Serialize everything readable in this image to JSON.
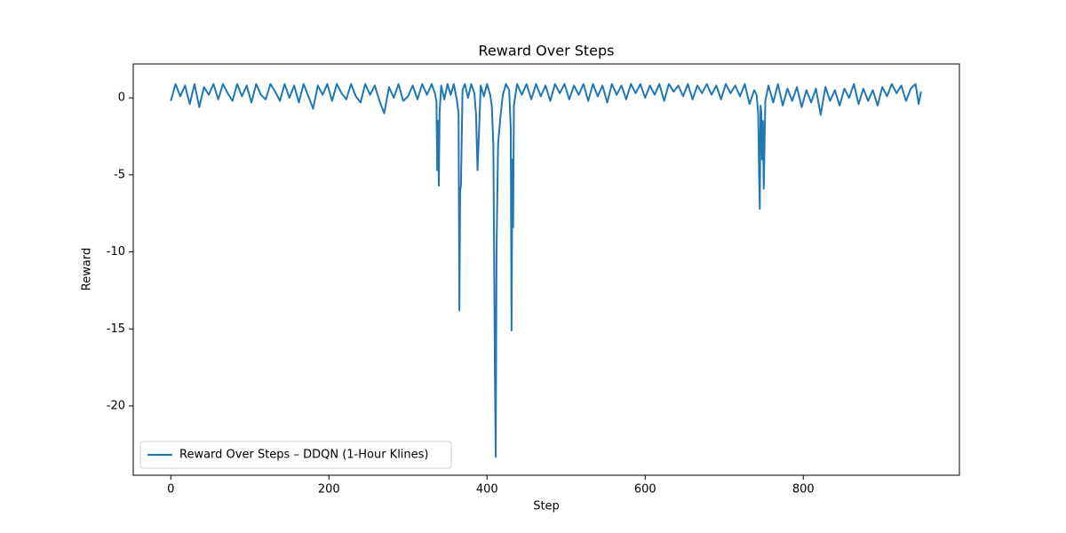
{
  "chart_data": {
    "type": "line",
    "title": "Reward Over Steps",
    "x_label": "Step",
    "y_label": "Reward",
    "legend": "lower left",
    "xlim": [
      -47.5,
      997.5
    ],
    "xticks": [
      0,
      200,
      400,
      600,
      800
    ],
    "ylim": [
      -24.5,
      2.2
    ],
    "yticks": [
      0,
      -5,
      -10,
      -15,
      -20
    ],
    "x": [
      0,
      6,
      12,
      18,
      24,
      30,
      36,
      42,
      48,
      54,
      60,
      66,
      72,
      78,
      84,
      90,
      96,
      102,
      108,
      114,
      120,
      126,
      132,
      138,
      144,
      150,
      156,
      162,
      168,
      174,
      180,
      186,
      192,
      198,
      204,
      210,
      216,
      222,
      228,
      234,
      240,
      246,
      252,
      258,
      264,
      270,
      276,
      282,
      288,
      294,
      300,
      306,
      312,
      318,
      324,
      330,
      334,
      336,
      337,
      338,
      339,
      340,
      342,
      346,
      350,
      354,
      358,
      362,
      364,
      365,
      366,
      367,
      369,
      372,
      376,
      380,
      384,
      386,
      388,
      390,
      392,
      396,
      400,
      404,
      406,
      408,
      410,
      411,
      412,
      414,
      417,
      420,
      424,
      428,
      430,
      431,
      432,
      433,
      434,
      438,
      444,
      450,
      456,
      462,
      468,
      474,
      480,
      486,
      492,
      498,
      504,
      510,
      516,
      522,
      528,
      534,
      540,
      546,
      552,
      558,
      564,
      570,
      576,
      582,
      588,
      594,
      600,
      606,
      612,
      618,
      624,
      630,
      636,
      642,
      648,
      654,
      660,
      666,
      672,
      678,
      684,
      690,
      696,
      702,
      708,
      714,
      720,
      726,
      732,
      738,
      741,
      743,
      744,
      745,
      746,
      747,
      748,
      749,
      750,
      752,
      756,
      762,
      768,
      774,
      780,
      786,
      792,
      798,
      804,
      810,
      816,
      822,
      828,
      834,
      840,
      846,
      852,
      858,
      864,
      870,
      876,
      882,
      888,
      894,
      900,
      906,
      912,
      918,
      924,
      930,
      936,
      942,
      946,
      949
    ],
    "series": [
      {
        "name": "Reward Over Steps – DDQN (1-Hour Klines)",
        "color": "#1f77b4",
        "values": [
          -0.2,
          0.9,
          0.1,
          0.8,
          -0.4,
          0.9,
          -0.6,
          0.7,
          0.2,
          0.9,
          -0.1,
          0.9,
          0.3,
          -0.2,
          0.9,
          0.1,
          0.8,
          -0.3,
          0.9,
          0.2,
          -0.1,
          0.9,
          0.4,
          -0.2,
          0.9,
          0.0,
          0.8,
          -0.3,
          0.9,
          0.1,
          -0.7,
          0.8,
          0.2,
          0.9,
          -0.2,
          0.9,
          0.3,
          -0.1,
          0.9,
          0.1,
          -0.3,
          0.9,
          0.2,
          0.8,
          -0.2,
          -1.0,
          0.7,
          0.0,
          0.9,
          -0.2,
          0.1,
          0.8,
          -0.1,
          0.9,
          0.2,
          0.9,
          0.3,
          -0.2,
          -4.7,
          -1.5,
          -5.7,
          -1.0,
          0.8,
          -0.1,
          0.9,
          0.2,
          0.9,
          -0.2,
          -1.0,
          -13.8,
          -6.0,
          -5.7,
          0.5,
          0.9,
          0.0,
          0.9,
          0.3,
          -1.0,
          -4.7,
          -2.0,
          0.8,
          0.1,
          0.9,
          0.2,
          -0.5,
          -3.0,
          -18.0,
          -23.3,
          -10.0,
          -3.0,
          -1.2,
          0.2,
          0.9,
          0.5,
          -2.0,
          -15.1,
          -4.0,
          -8.4,
          -0.5,
          0.9,
          0.2,
          0.9,
          -0.1,
          0.9,
          0.1,
          0.8,
          -0.2,
          0.9,
          0.3,
          0.9,
          -0.1,
          0.8,
          0.2,
          0.9,
          -0.2,
          0.9,
          0.1,
          0.8,
          -0.3,
          0.9,
          0.2,
          0.8,
          -0.1,
          0.9,
          0.3,
          0.9,
          0.0,
          0.8,
          0.2,
          0.9,
          -0.2,
          0.9,
          0.4,
          0.8,
          0.1,
          0.9,
          -0.1,
          0.8,
          0.3,
          0.9,
          0.2,
          0.8,
          -0.1,
          0.9,
          0.3,
          0.8,
          0.1,
          0.9,
          -0.4,
          0.5,
          0.2,
          -1.0,
          -4.5,
          -7.2,
          -0.5,
          -1.0,
          -4.0,
          -1.5,
          -5.9,
          -0.2,
          0.8,
          -0.3,
          0.9,
          -0.5,
          0.6,
          -0.2,
          0.7,
          -0.6,
          0.5,
          -0.3,
          0.6,
          -1.1,
          0.7,
          -0.2,
          0.5,
          -0.5,
          0.6,
          0.0,
          0.9,
          -0.4,
          0.6,
          -0.2,
          0.5,
          -0.5,
          0.7,
          0.1,
          0.9,
          0.3,
          0.8,
          -0.2,
          0.6,
          0.9,
          -0.4,
          0.4
        ]
      }
    ]
  }
}
